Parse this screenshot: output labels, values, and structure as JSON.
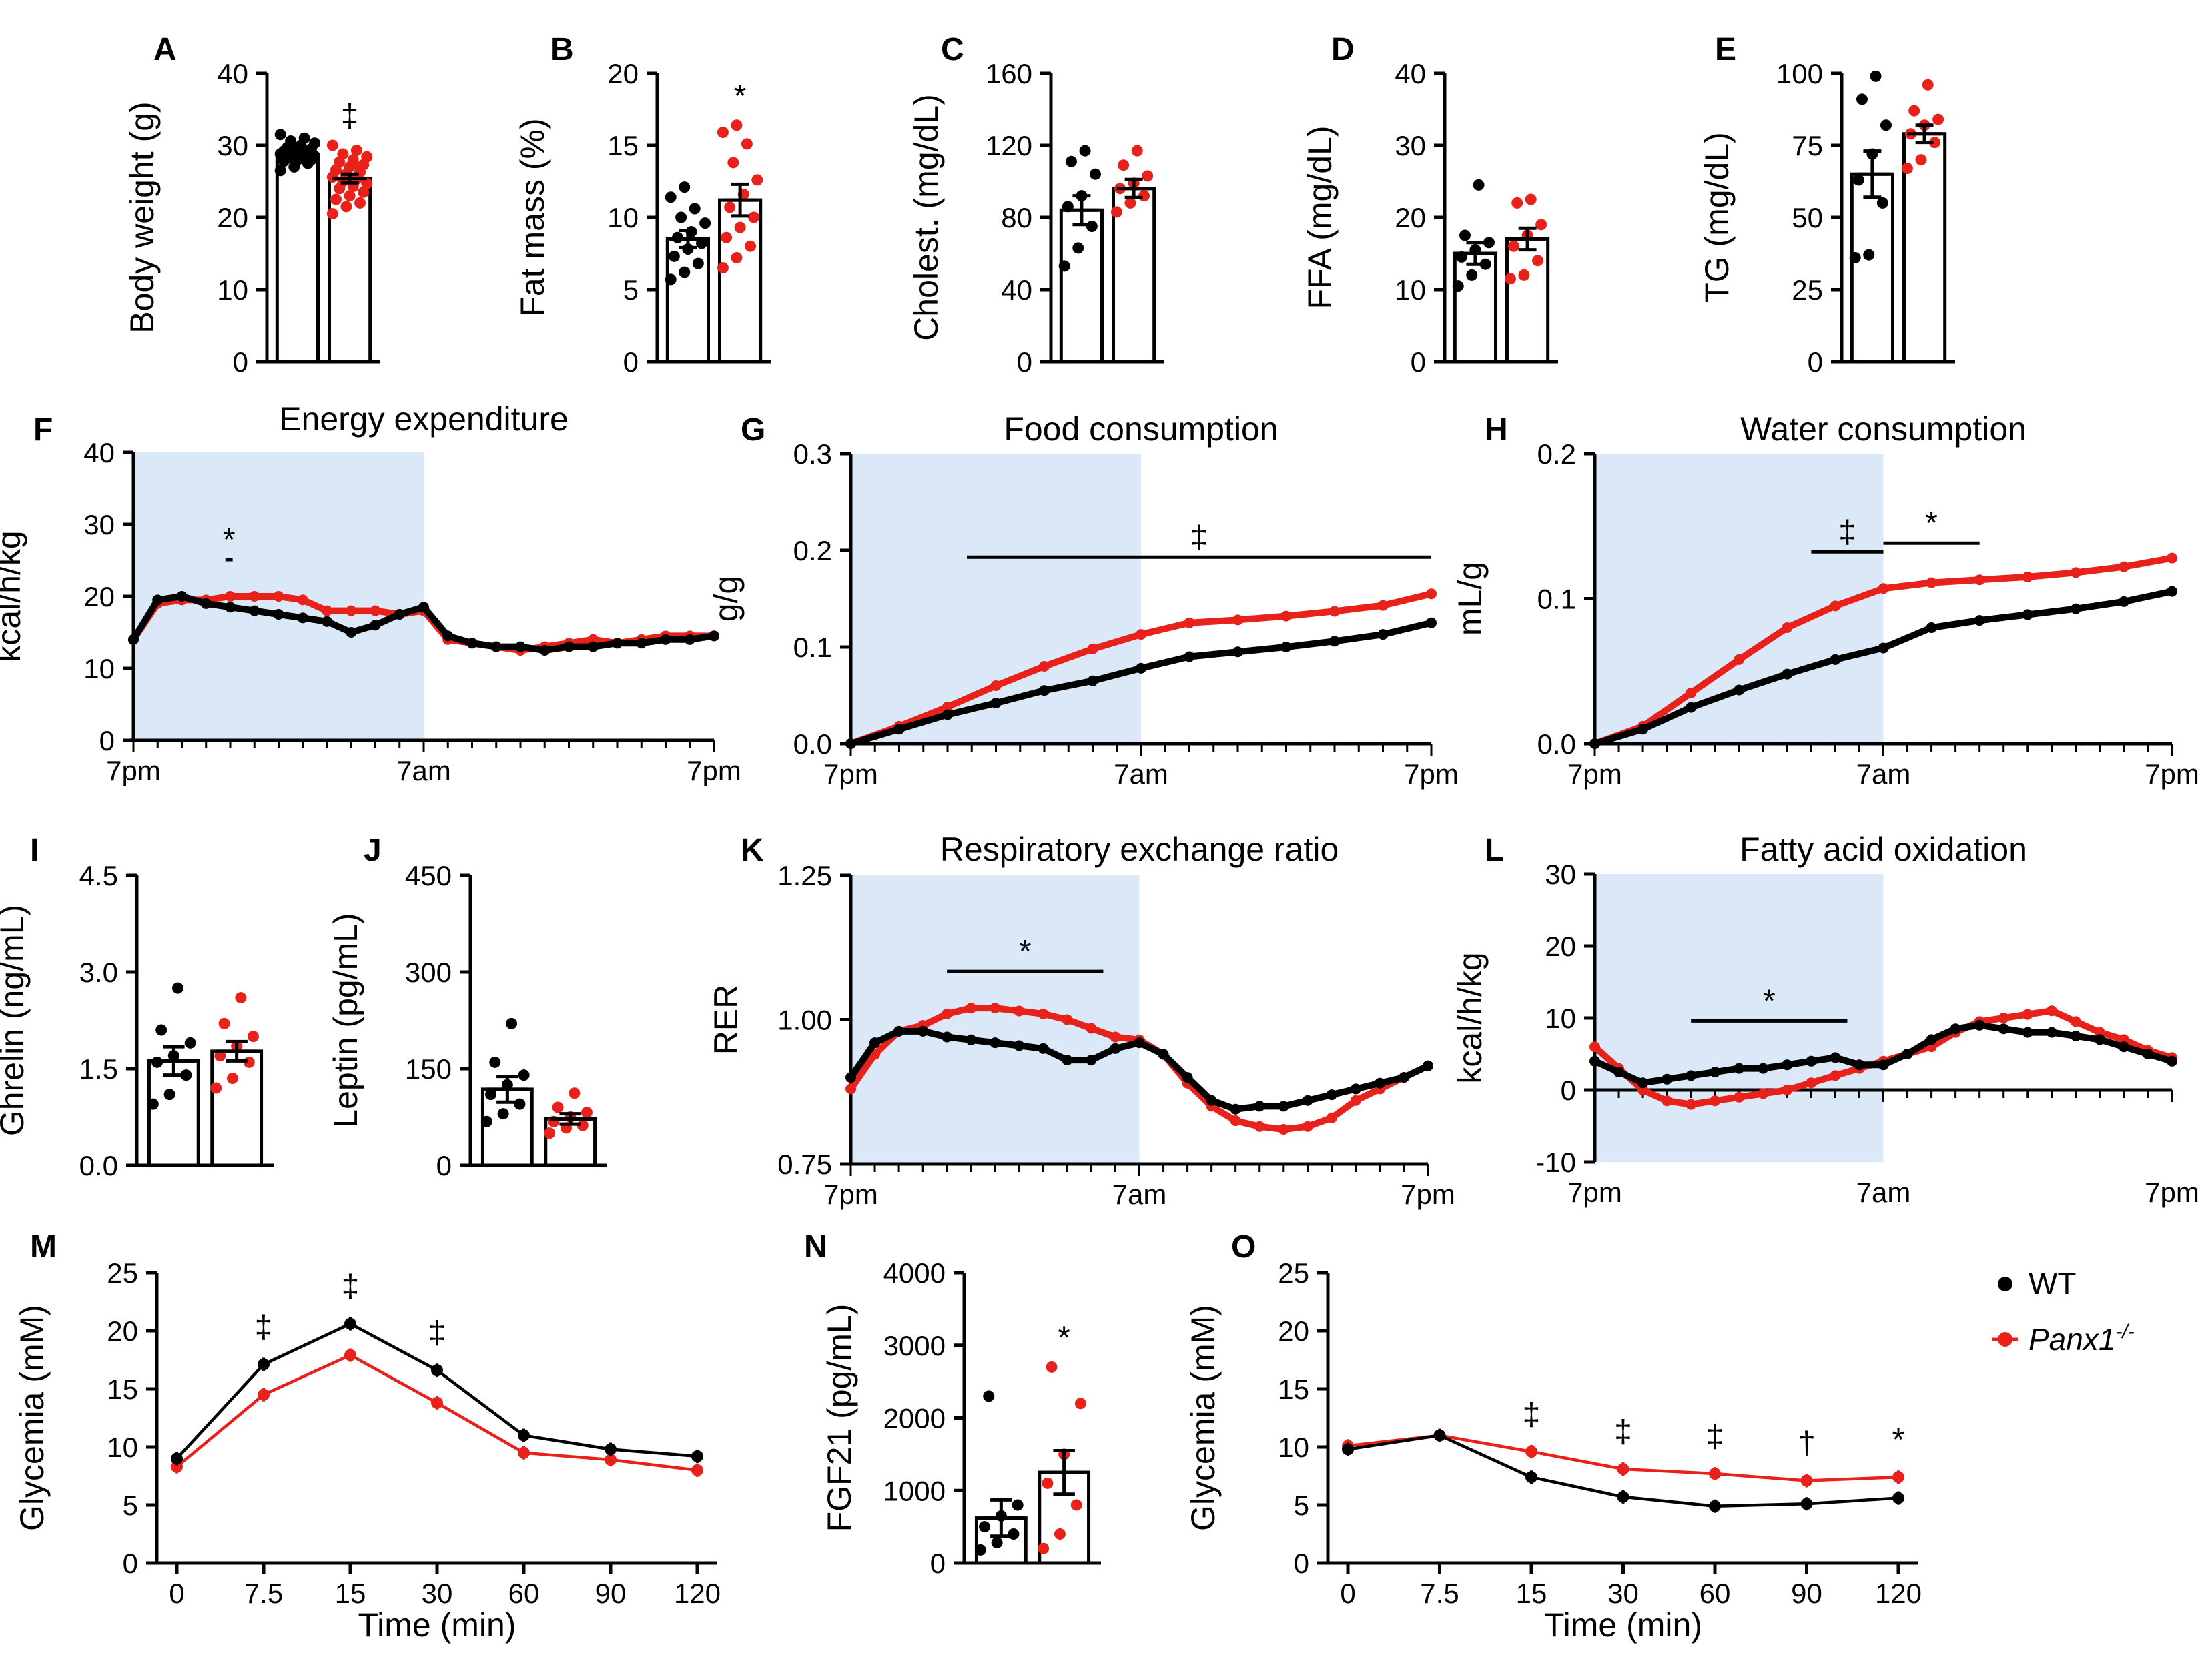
{
  "colors": {
    "wt": "#000000",
    "ko": "#e8221b",
    "dark": "#dbe8f7",
    "axis": "#000000"
  },
  "legend": {
    "wt": "WT",
    "ko_prefix": "Panx1",
    "ko_sup": "-/-"
  },
  "time_ticks": [
    "7pm",
    "7am",
    "7pm"
  ],
  "chart_data": [
    {
      "id": "A",
      "type": "bar",
      "letter": "A",
      "ylabel": "Body weight (g)",
      "ylim": [
        0,
        40
      ],
      "yticks": [
        0,
        10,
        20,
        30,
        40
      ],
      "series": [
        {
          "name": "WT",
          "mean": 28.5,
          "sem": 0.4
        },
        {
          "name": "Panx1-/-",
          "mean": 25.4,
          "sem": 0.6
        }
      ],
      "points": [
        [
          26.5,
          27,
          27.5,
          27.8,
          28,
          28,
          28.2,
          28.3,
          28.5,
          28.5,
          28.7,
          28.8,
          29,
          29,
          29.2,
          29.3,
          29.5,
          29.7,
          30,
          30.3,
          30.6,
          31,
          31.5,
          29.5,
          28.9
        ],
        [
          20.5,
          21.5,
          22,
          22.5,
          23,
          23.5,
          24,
          24.3,
          24.7,
          25,
          25.3,
          25.6,
          26,
          26.3,
          26.6,
          27,
          27.3,
          27.7,
          28,
          28.4,
          28.8,
          29.3,
          30,
          25.8,
          26.8
        ]
      ],
      "annotation": "‡"
    },
    {
      "id": "B",
      "type": "bar",
      "letter": "B",
      "ylabel": "Fat mass (%)",
      "ylim": [
        0,
        20
      ],
      "yticks": [
        0,
        5,
        10,
        15,
        20
      ],
      "series": [
        {
          "name": "WT",
          "mean": 8.5,
          "sem": 0.6
        },
        {
          "name": "Panx1-/-",
          "mean": 11.2,
          "sem": 1.1
        }
      ],
      "points": [
        [
          5.7,
          6.2,
          6.8,
          7.3,
          7.8,
          8.2,
          8.6,
          9.0,
          9.6,
          10.0,
          10.6,
          11.4,
          12.1
        ],
        [
          6.5,
          7.2,
          8.0,
          8.6,
          9.3,
          10.0,
          10.7,
          11.6,
          12.6,
          13.8,
          15.1,
          15.9,
          16.4
        ]
      ],
      "annotation": "*"
    },
    {
      "id": "C",
      "type": "bar",
      "letter": "C",
      "ylabel": "Cholest. (mg/dL)",
      "ylim": [
        0,
        160
      ],
      "yticks": [
        0,
        40,
        80,
        120,
        160
      ],
      "series": [
        {
          "name": "WT",
          "mean": 84,
          "sem": 8
        },
        {
          "name": "Panx1-/-",
          "mean": 96,
          "sem": 5
        }
      ],
      "points": [
        [
          53,
          63,
          75,
          86,
          92,
          104,
          111,
          117
        ],
        [
          83,
          88,
          92,
          96,
          99,
          103,
          109,
          117
        ]
      ],
      "annotation": ""
    },
    {
      "id": "D",
      "type": "bar",
      "letter": "D",
      "ylabel": "FFA (mg/dL)",
      "ylim": [
        0,
        40
      ],
      "yticks": [
        0,
        10,
        20,
        30,
        40
      ],
      "series": [
        {
          "name": "WT",
          "mean": 15,
          "sem": 1.5
        },
        {
          "name": "Panx1-/-",
          "mean": 17,
          "sem": 1.5
        }
      ],
      "points": [
        [
          10.5,
          12,
          13.5,
          14.5,
          15.5,
          16.5,
          17.5,
          24.5
        ],
        [
          11.5,
          12,
          14,
          16,
          17.5,
          19,
          22,
          22.5
        ]
      ],
      "annotation": ""
    },
    {
      "id": "E",
      "type": "bar",
      "letter": "E",
      "ylabel": "TG (mg/dL)",
      "ylim": [
        0,
        100
      ],
      "yticks": [
        0,
        25,
        50,
        75,
        100
      ],
      "series": [
        {
          "name": "WT",
          "mean": 65,
          "sem": 8
        },
        {
          "name": "Panx1-/-",
          "mean": 79,
          "sem": 3
        }
      ],
      "points": [
        [
          36,
          37,
          55,
          63,
          72,
          82,
          91,
          99
        ],
        [
          67,
          70,
          76,
          79,
          82,
          84,
          87,
          96
        ]
      ],
      "annotation": ""
    },
    {
      "id": "F",
      "type": "line",
      "letter": "F",
      "title": "Energy expenditure",
      "ylabel": "kcal/h/kg",
      "ylim": [
        0,
        40
      ],
      "yticks": [
        0,
        10,
        20,
        30,
        40
      ],
      "x": [
        0,
        1,
        2,
        3,
        4,
        5,
        6,
        7,
        8,
        9,
        10,
        11,
        12,
        13,
        14,
        15,
        16,
        17,
        18,
        19,
        20,
        21,
        22,
        23,
        24
      ],
      "series": [
        {
          "name": "WT",
          "values": [
            14,
            19.5,
            20,
            19,
            18.5,
            18,
            17.5,
            17,
            16.5,
            15,
            16,
            17.5,
            18.5,
            14.5,
            13.5,
            13,
            13,
            12.5,
            13,
            13,
            13.5,
            13.5,
            14,
            14,
            14.5
          ]
        },
        {
          "name": "Panx1-/-",
          "values": [
            14,
            19,
            19.5,
            19.5,
            20,
            20,
            20,
            19.5,
            18,
            18,
            18,
            17.5,
            18,
            14,
            13.5,
            13,
            12.5,
            13,
            13.5,
            14,
            13.5,
            14,
            14.5,
            14.5,
            14.5
          ]
        }
      ],
      "bars": [
        {
          "x0": 3.8,
          "x1": 4.1,
          "label": "*"
        }
      ]
    },
    {
      "id": "G",
      "type": "line",
      "letter": "G",
      "title": "Food consumption",
      "ylabel": "g/g",
      "ylim": [
        0,
        0.3
      ],
      "yticks": [
        "0.0",
        "0.1",
        "0.2",
        "0.3"
      ],
      "x": [
        0,
        2,
        4,
        6,
        8,
        10,
        12,
        14,
        16,
        18,
        20,
        22,
        24
      ],
      "series": [
        {
          "name": "WT",
          "values": [
            0,
            0.015,
            0.03,
            0.042,
            0.055,
            0.065,
            0.078,
            0.09,
            0.095,
            0.1,
            0.106,
            0.113,
            0.125
          ]
        },
        {
          "name": "Panx1-/-",
          "values": [
            0,
            0.018,
            0.038,
            0.06,
            0.08,
            0.098,
            0.113,
            0.125,
            0.128,
            0.132,
            0.137,
            0.143,
            0.155
          ]
        }
      ],
      "bars": [
        {
          "x0": 4.8,
          "x1": 24,
          "label": "‡"
        }
      ]
    },
    {
      "id": "H",
      "type": "line",
      "letter": "H",
      "title": "Water consumption",
      "ylabel": "mL/g",
      "ylim": [
        0,
        0.2
      ],
      "yticks": [
        "0.0",
        "0.1",
        "0.2"
      ],
      "x": [
        0,
        2,
        4,
        6,
        8,
        10,
        12,
        14,
        16,
        18,
        20,
        22,
        24
      ],
      "series": [
        {
          "name": "WT",
          "values": [
            0,
            0.01,
            0.025,
            0.037,
            0.048,
            0.058,
            0.066,
            0.08,
            0.085,
            0.089,
            0.093,
            0.098,
            0.105
          ]
        },
        {
          "name": "Panx1-/-",
          "values": [
            0,
            0.012,
            0.035,
            0.058,
            0.08,
            0.095,
            0.107,
            0.111,
            0.113,
            0.115,
            0.118,
            0.122,
            0.128
          ]
        }
      ],
      "bars": [
        {
          "x0": 9,
          "x1": 12,
          "label": "‡"
        },
        {
          "x0": 12,
          "x1": 16,
          "label": "*"
        }
      ]
    },
    {
      "id": "I",
      "type": "bar",
      "letter": "I",
      "ylabel": "Ghrelin (ng/mL)",
      "ylim": [
        0,
        4.5
      ],
      "yticks": [
        "0.0",
        "1.5",
        "3.0",
        "4.5"
      ],
      "series": [
        {
          "name": "WT",
          "mean": 1.62,
          "sem": 0.22
        },
        {
          "name": "Panx1-/-",
          "mean": 1.77,
          "sem": 0.15
        }
      ],
      "points": [
        [
          0.95,
          1.1,
          1.4,
          1.6,
          1.7,
          1.9,
          2.1,
          2.75
        ],
        [
          1.2,
          1.35,
          1.6,
          1.7,
          1.85,
          2.0,
          2.2,
          2.6
        ]
      ],
      "annotation": ""
    },
    {
      "id": "J",
      "type": "bar",
      "letter": "J",
      "ylabel": "Leptin (pg/mL)",
      "ylim": [
        0,
        450
      ],
      "yticks": [
        0,
        150,
        300,
        450
      ],
      "series": [
        {
          "name": "WT",
          "mean": 118,
          "sem": 20
        },
        {
          "name": "Panx1-/-",
          "mean": 72,
          "sem": 8
        }
      ],
      "points": [
        [
          68,
          80,
          95,
          110,
          125,
          140,
          160,
          220
        ],
        [
          50,
          58,
          62,
          68,
          75,
          82,
          90,
          112
        ]
      ],
      "annotation": ""
    },
    {
      "id": "K",
      "type": "line",
      "letter": "K",
      "title": "Respiratory exchange ratio",
      "ylabel": "RER",
      "ylim": [
        0.75,
        1.25
      ],
      "yticks": [
        "0.75",
        "1.00",
        "1.25"
      ],
      "x": [
        0,
        1,
        2,
        3,
        4,
        5,
        6,
        7,
        8,
        9,
        10,
        11,
        12,
        13,
        14,
        15,
        16,
        17,
        18,
        19,
        20,
        21,
        22,
        23,
        24
      ],
      "series": [
        {
          "name": "WT",
          "values": [
            0.9,
            0.96,
            0.98,
            0.98,
            0.97,
            0.965,
            0.96,
            0.955,
            0.95,
            0.93,
            0.93,
            0.95,
            0.96,
            0.94,
            0.9,
            0.86,
            0.845,
            0.85,
            0.85,
            0.86,
            0.87,
            0.88,
            0.89,
            0.9,
            0.92
          ]
        },
        {
          "name": "Panx1-/-",
          "values": [
            0.88,
            0.94,
            0.98,
            0.99,
            1.01,
            1.02,
            1.02,
            1.015,
            1.01,
            1.0,
            0.985,
            0.97,
            0.965,
            0.94,
            0.89,
            0.85,
            0.825,
            0.815,
            0.81,
            0.815,
            0.83,
            0.86,
            0.88,
            0.9,
            0.92
          ]
        }
      ],
      "bars": [
        {
          "x0": 4,
          "x1": 10.5,
          "label": "*"
        }
      ]
    },
    {
      "id": "L",
      "type": "line",
      "letter": "L",
      "title": "Fatty acid oxidation",
      "ylabel": "kcal/h/kg",
      "ylim": [
        -10,
        30
      ],
      "yticks": [
        -10,
        0,
        10,
        20,
        30
      ],
      "x": [
        0,
        1,
        2,
        3,
        4,
        5,
        6,
        7,
        8,
        9,
        10,
        11,
        12,
        13,
        14,
        15,
        16,
        17,
        18,
        19,
        20,
        21,
        22,
        23,
        24
      ],
      "series": [
        {
          "name": "WT",
          "values": [
            4,
            2.5,
            1,
            1.5,
            2,
            2.5,
            3,
            3,
            3.5,
            4,
            4.5,
            3.5,
            3.5,
            5,
            7,
            8.5,
            9,
            8.5,
            8,
            8,
            7.5,
            7,
            6,
            5,
            4
          ]
        },
        {
          "name": "Panx1-/-",
          "values": [
            6,
            3,
            0,
            -1.5,
            -2,
            -1.5,
            -1,
            -0.5,
            0,
            1,
            2,
            3,
            4,
            5,
            6,
            8,
            9.5,
            10,
            10.5,
            11,
            9.5,
            8,
            7,
            5.5,
            4.5
          ]
        }
      ],
      "bars": [
        {
          "x0": 4,
          "x1": 10.5,
          "label": "*"
        }
      ]
    },
    {
      "id": "M",
      "type": "line",
      "letter": "M",
      "ylabel": "Glycemia (mM)",
      "xlabel": "Time (min)",
      "ylim": [
        0,
        25
      ],
      "yticks": [
        0,
        5,
        10,
        15,
        20,
        25
      ],
      "categories": [
        "0",
        "7.5",
        "15",
        "30",
        "60",
        "90",
        "120"
      ],
      "series": [
        {
          "name": "WT",
          "values": [
            9.0,
            17.1,
            20.6,
            16.6,
            11.0,
            9.8,
            9.2
          ]
        },
        {
          "name": "Panx1-/-",
          "values": [
            8.3,
            14.5,
            17.9,
            13.8,
            9.5,
            8.9,
            8.0
          ]
        }
      ],
      "annotations": [
        "",
        "‡",
        "‡",
        "‡",
        "",
        "",
        ""
      ]
    },
    {
      "id": "N",
      "type": "bar",
      "letter": "N",
      "ylabel": "FGF21 (pg/mL)",
      "ylim": [
        0,
        4000
      ],
      "yticks": [
        0,
        1000,
        2000,
        3000,
        4000
      ],
      "series": [
        {
          "name": "WT",
          "mean": 620,
          "sem": 250
        },
        {
          "name": "Panx1-/-",
          "mean": 1250,
          "sem": 300
        }
      ],
      "points": [
        [
          180,
          280,
          400,
          500,
          650,
          800,
          2300
        ],
        [
          200,
          400,
          800,
          1100,
          1500,
          2200,
          2700
        ]
      ],
      "annotation": "*"
    },
    {
      "id": "O",
      "type": "line",
      "letter": "O",
      "ylabel": "Glycemia (mM)",
      "xlabel": "Time (min)",
      "ylim": [
        0,
        25
      ],
      "yticks": [
        0,
        5,
        10,
        15,
        20,
        25
      ],
      "categories": [
        "0",
        "7.5",
        "15",
        "30",
        "60",
        "90",
        "120"
      ],
      "series": [
        {
          "name": "WT",
          "values": [
            9.8,
            11.0,
            7.4,
            5.7,
            4.9,
            5.1,
            5.6
          ]
        },
        {
          "name": "Panx1-/-",
          "values": [
            10.1,
            11.0,
            9.6,
            8.1,
            7.7,
            7.1,
            7.4
          ]
        }
      ],
      "annotations": [
        "",
        "",
        "‡",
        "‡",
        "‡",
        "†",
        "*"
      ]
    }
  ]
}
